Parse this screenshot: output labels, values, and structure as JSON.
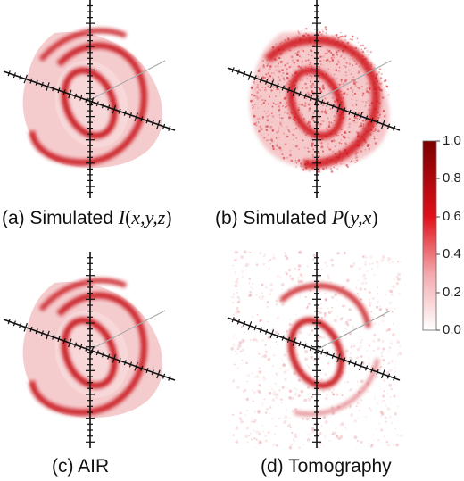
{
  "panels": [
    {
      "id": "a",
      "label_prefix": "(a) Simulated",
      "function": "I",
      "args": "x,y,z",
      "style": "smooth"
    },
    {
      "id": "b",
      "label_prefix": "(b) Simulated",
      "function": "P",
      "args": "y,x",
      "style": "speckle"
    },
    {
      "id": "c",
      "label_prefix": "(c) AIR",
      "style": "smooth"
    },
    {
      "id": "d",
      "label_prefix": "(d) Tomography",
      "style": "noisy"
    }
  ],
  "colorbar": {
    "ticks": [
      "1.0",
      "0.8",
      "0.6",
      "0.4",
      "0.2",
      "0.0"
    ],
    "color_high": "#7a0000",
    "color_mid": "#e0101a",
    "color_low": "#ffffff"
  },
  "colors": {
    "shell": "#f2c4c6",
    "ring": "#c8141c",
    "axis": "#111111"
  }
}
